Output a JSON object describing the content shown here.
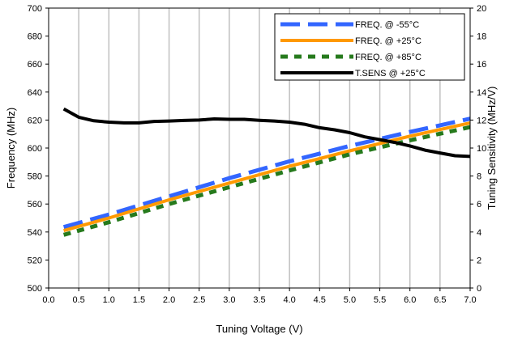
{
  "chart_data": {
    "type": "line",
    "title": "",
    "xlabel": "Tuning Voltage (V)",
    "ylabel": "Frequency (MHz)",
    "y2label": "Tuning Sensitivity (MHz/V)",
    "xlim": [
      0.0,
      7.0
    ],
    "ylim": [
      500,
      700
    ],
    "y2lim": [
      0,
      20
    ],
    "x_ticks": [
      "0.0",
      "0.5",
      "1.0",
      "1.5",
      "2.0",
      "2.5",
      "3.0",
      "3.5",
      "4.0",
      "4.5",
      "5.0",
      "5.5",
      "6.0",
      "6.5",
      "7.0"
    ],
    "y_ticks": [
      "500",
      "520",
      "540",
      "560",
      "580",
      "600",
      "620",
      "640",
      "660",
      "680",
      "700"
    ],
    "y2_ticks": [
      "0",
      "2",
      "4",
      "6",
      "8",
      "10",
      "12",
      "14",
      "16",
      "18",
      "20"
    ],
    "grid": "vertical",
    "legend_position": "top-right",
    "series": [
      {
        "name": "FREQ. @ -55°C",
        "axis": "left",
        "color": "#3366ff",
        "style": "long-dash",
        "x": [
          0.25,
          1.0,
          2.0,
          3.0,
          4.0,
          5.0,
          6.0,
          7.0
        ],
        "y": [
          543.5,
          552.5,
          565.5,
          578.5,
          590.5,
          601.5,
          611.5,
          621.0
        ]
      },
      {
        "name": "FREQ. @ +25°C",
        "axis": "left",
        "color": "#ff9900",
        "style": "solid",
        "x": [
          0.25,
          1.0,
          2.0,
          3.0,
          4.0,
          5.0,
          6.0,
          7.0
        ],
        "y": [
          541.0,
          550.0,
          563.0,
          575.0,
          587.0,
          598.0,
          608.5,
          618.0
        ]
      },
      {
        "name": "FREQ. @ +85°C",
        "axis": "left",
        "color": "#267a1c",
        "style": "short-dash",
        "x": [
          0.25,
          1.0,
          2.0,
          3.0,
          4.0,
          5.0,
          6.0,
          7.0
        ],
        "y": [
          538.0,
          547.0,
          560.0,
          572.0,
          584.0,
          595.5,
          605.5,
          615.0
        ]
      },
      {
        "name": "T.SENS @ +25°C",
        "axis": "right",
        "color": "#000000",
        "style": "solid",
        "x": [
          0.25,
          0.5,
          0.75,
          1.0,
          1.25,
          1.5,
          1.75,
          2.0,
          2.25,
          2.5,
          2.75,
          3.0,
          3.25,
          3.5,
          3.75,
          4.0,
          4.25,
          4.5,
          4.75,
          5.0,
          5.25,
          5.5,
          5.75,
          6.0,
          6.25,
          6.5,
          6.75,
          7.0
        ],
        "y": [
          12.8,
          12.2,
          11.95,
          11.85,
          11.8,
          11.8,
          11.9,
          11.93,
          11.97,
          12.0,
          12.08,
          12.05,
          12.05,
          11.98,
          11.93,
          11.85,
          11.7,
          11.45,
          11.3,
          11.1,
          10.8,
          10.6,
          10.4,
          10.15,
          9.85,
          9.65,
          9.45,
          9.4
        ]
      }
    ]
  }
}
